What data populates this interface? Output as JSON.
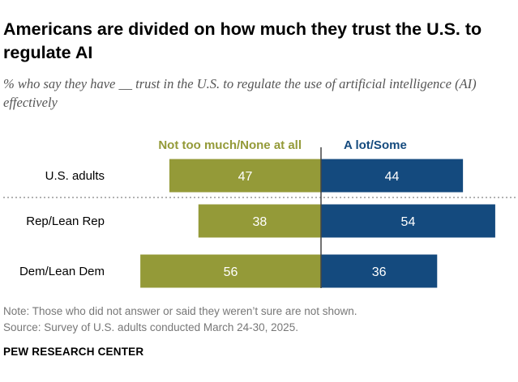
{
  "colors": {
    "negative": "#949a38",
    "positive": "#144a7e",
    "axis": "#444444",
    "text_light": "#ffffff"
  },
  "chart_data": {
    "type": "bar",
    "orientation": "horizontal-diverging",
    "title": "Americans are divided on how much they trust the U.S. to regulate AI",
    "subtitle": "% who say they have __ trust in the U.S. to regulate the use of artificial intelligence (AI) effectively",
    "categories": [
      "U.S. adults",
      "Rep/Lean Rep",
      "Dem/Lean Dem"
    ],
    "series": [
      {
        "name": "Not too much/None at all",
        "values": [
          47,
          38,
          56
        ]
      },
      {
        "name": "A lot/Some",
        "values": [
          44,
          54,
          36
        ]
      }
    ],
    "xlim": [
      0,
      100
    ],
    "grid": false,
    "legend": "top"
  },
  "footer": {
    "note": "Note: Those who did not answer or said they weren’t sure are not shown.",
    "source": "Source: Survey of U.S. adults conducted March 24-30, 2025.",
    "brand": "PEW RESEARCH CENTER"
  }
}
